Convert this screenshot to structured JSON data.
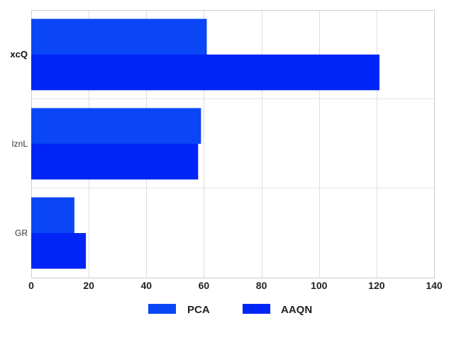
{
  "chart_data": {
    "type": "bar",
    "orientation": "horizontal",
    "categories": [
      "xcQ",
      "IznL",
      "GR"
    ],
    "series": [
      {
        "name": "PCA",
        "values": [
          61,
          59,
          15
        ],
        "color": "#0a46f5"
      },
      {
        "name": "AAQN",
        "values": [
          121,
          58,
          19
        ],
        "color": "#0225f7"
      }
    ],
    "xlim": [
      0,
      140
    ],
    "xticks": [
      0,
      20,
      40,
      60,
      80,
      100,
      120,
      140
    ],
    "xlabel": "",
    "ylabel": "",
    "grid": true,
    "legend_position": "bottom-center"
  }
}
